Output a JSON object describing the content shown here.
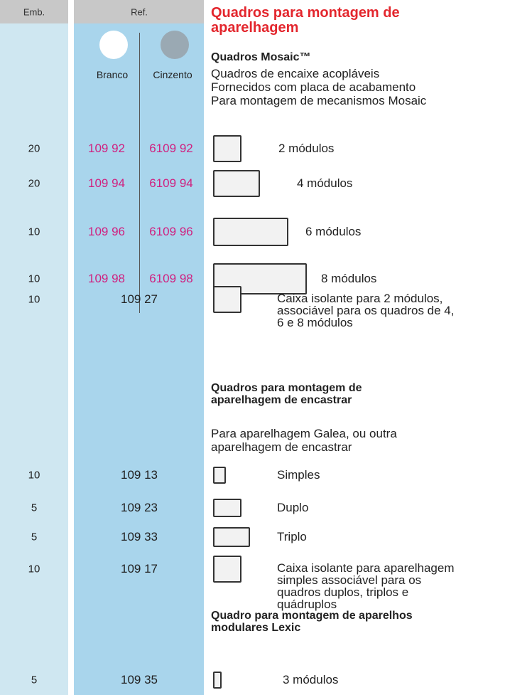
{
  "header": {
    "emb": "Emb.",
    "ref": "Ref."
  },
  "title": [
    "Quadros para montagem de",
    "aparelhagem"
  ],
  "columns": {
    "white": "Branco",
    "grey": "Cinzento"
  },
  "sections": [
    {
      "title": [
        "Quadros Mosaic™"
      ],
      "description": [
        "Quadros de encaixe acopláveis",
        "Fornecidos com placa de acabamento",
        "Para montagem de mecanismos Mosaic"
      ],
      "rows": [
        {
          "emb": "20",
          "refs": [
            "109 92",
            "6109 92"
          ],
          "label": [
            "2 módulos"
          ]
        },
        {
          "emb": "20",
          "refs": [
            "109 94",
            "6109 94"
          ],
          "label": [
            "4 módulos"
          ]
        },
        {
          "emb": "10",
          "refs": [
            "109 96",
            "6109 96"
          ],
          "label": [
            "6 módulos"
          ]
        },
        {
          "emb": "10",
          "refs": [
            "109 98",
            "6109 98"
          ],
          "label": [
            "8 módulos"
          ]
        },
        {
          "emb": "10",
          "refs": [
            "109 27"
          ],
          "label": [
            "Caixa isolante para 2 módulos,",
            "associável para os quadros de 4,",
            "6 e 8 módulos"
          ]
        }
      ]
    },
    {
      "title": [
        "Quadros para montagem de",
        "aparelhagem de encastrar"
      ],
      "description": [
        "Para aparelhagem Galea, ou outra",
        "aparelhagem de encastrar"
      ],
      "rows": [
        {
          "emb": "10",
          "refs": [
            "109 13"
          ],
          "label": [
            "Simples"
          ]
        },
        {
          "emb": "5",
          "refs": [
            "109 23"
          ],
          "label": [
            "Duplo"
          ]
        },
        {
          "emb": "5",
          "refs": [
            "109 33"
          ],
          "label": [
            "Triplo"
          ]
        },
        {
          "emb": "10",
          "refs": [
            "109 17"
          ],
          "label": [
            "Caixa isolante para aparelhagem",
            "simples associável para os",
            "quadros duplos, triplos e",
            "quádruplos"
          ]
        }
      ]
    },
    {
      "title": [
        "Quadro para montagem de aparelhos",
        "modulares Lexic"
      ],
      "rows": [
        {
          "emb": "5",
          "refs": [
            "109 35"
          ],
          "label": [
            "3 módulos"
          ]
        }
      ]
    }
  ]
}
